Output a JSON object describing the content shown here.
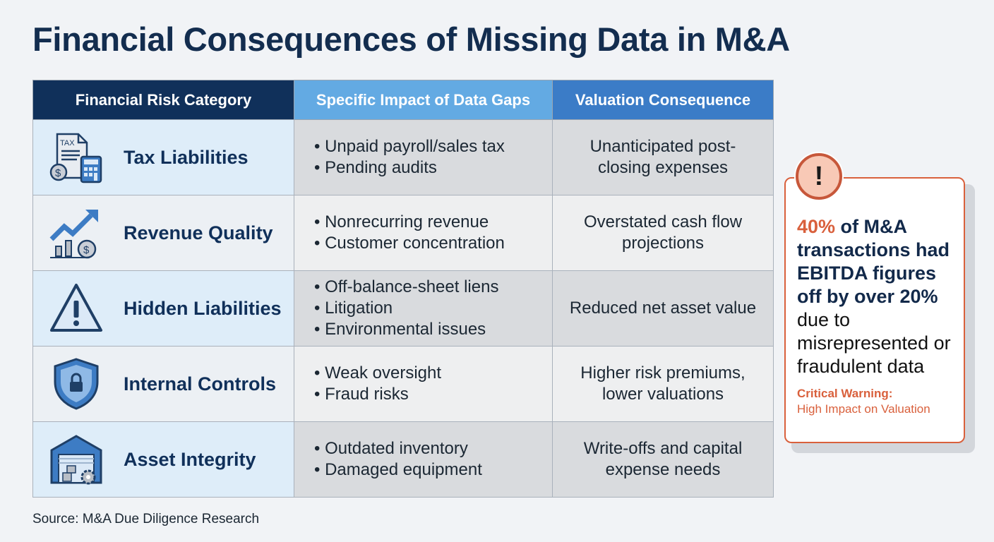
{
  "title": "Financial Consequences of Missing Data in M&A",
  "table": {
    "headers": [
      "Financial Risk Category",
      "Specific Impact of Data Gaps",
      "Valuation Consequence"
    ],
    "rows": [
      {
        "category": "Tax Liabilities",
        "icon": "tax-calculator-icon",
        "impacts": [
          "Unpaid payroll/sales tax",
          "Pending audits"
        ],
        "consequence": "Unanticipated post-closing expenses"
      },
      {
        "category": "Revenue Quality",
        "icon": "growth-chart-icon",
        "impacts": [
          "Nonrecurring revenue",
          "Customer concentration"
        ],
        "consequence": "Overstated cash flow projections"
      },
      {
        "category": "Hidden Liabilities",
        "icon": "warning-triangle-icon",
        "impacts": [
          "Off-balance-sheet liens",
          "Litigation",
          "Environmental issues"
        ],
        "consequence": "Reduced net asset value"
      },
      {
        "category": "Internal Controls",
        "icon": "shield-lock-icon",
        "impacts": [
          "Weak oversight",
          "Fraud risks"
        ],
        "consequence": "Higher risk premiums, lower valuations"
      },
      {
        "category": "Asset Integrity",
        "icon": "warehouse-gear-icon",
        "impacts": [
          "Outdated inventory",
          "Damaged equipment"
        ],
        "consequence": "Write-offs and capital expense needs"
      }
    ]
  },
  "callout": {
    "icon": "exclamation-icon",
    "percent": "40%",
    "bold_text": " of M&A transactions had EBITDA figures off by over 20%",
    "rest_text": "due to misrepresented or fraudulent data",
    "warning_label": "Critical Warning:",
    "warning_text": "High Impact on Valuation"
  },
  "source": "Source: M&A Due Diligence Research",
  "colors": {
    "navy": "#10305a",
    "header_light_blue": "#63aae3",
    "header_blue": "#3b7cc7",
    "warning_orange": "#d9603c"
  }
}
